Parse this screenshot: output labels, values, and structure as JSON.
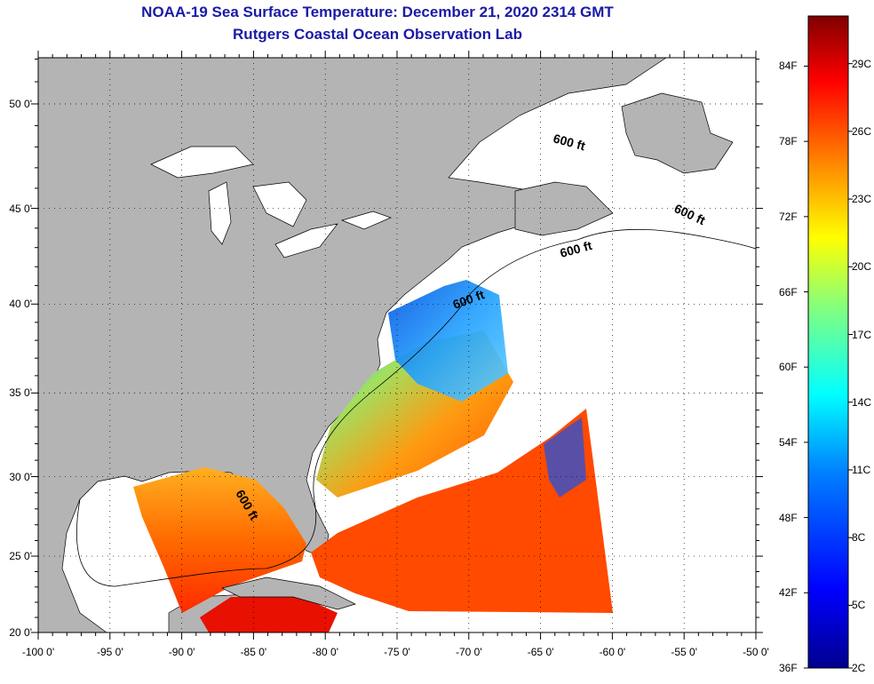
{
  "title": "NOAA-19 Sea Surface Temperature:  December 21, 2020 2314 GMT",
  "subtitle": "Rutgers Coastal Ocean Observation Lab",
  "map": {
    "lon_range": [
      -100,
      -50
    ],
    "lat_range": [
      20,
      52.5
    ],
    "lon_ticks": [
      -100,
      -95,
      -90,
      -85,
      -80,
      -75,
      -70,
      -65,
      -60,
      -55,
      -50
    ],
    "lon_labels": [
      "-100 0'",
      "-95 0'",
      "-90 0'",
      "-85 0'",
      "-80 0'",
      "-75 0'",
      "-70 0'",
      "-65 0'",
      "-60 0'",
      "-55 0'",
      "-50 0'"
    ],
    "lat_ticks": [
      20,
      25,
      30,
      35,
      40,
      45,
      50
    ],
    "lat_labels": [
      "20 0'",
      "25 0'",
      "30 0'",
      "35 0'",
      "40 0'",
      "45 0'",
      "50 0'"
    ],
    "contour_labels": [
      "600 ft",
      "600 ft",
      "600 ft",
      "600 ft",
      "600 ft"
    ],
    "colors": {
      "land": "#b4b4b4",
      "nodata": "#ffffff"
    }
  },
  "colorbar": {
    "f_labels": [
      "84F",
      "78F",
      "72F",
      "66F",
      "60F",
      "54F",
      "48F",
      "42F",
      "36F"
    ],
    "c_labels": [
      "29C",
      "26C",
      "23C",
      "20C",
      "17C",
      "14C",
      "11C",
      "8C",
      "5C",
      "2C"
    ],
    "range_f": [
      36,
      88
    ],
    "colors": [
      "#00008f",
      "#0000ff",
      "#0080ff",
      "#00ffff",
      "#80ff80",
      "#ffff00",
      "#ff8000",
      "#ff0000",
      "#800000"
    ]
  }
}
